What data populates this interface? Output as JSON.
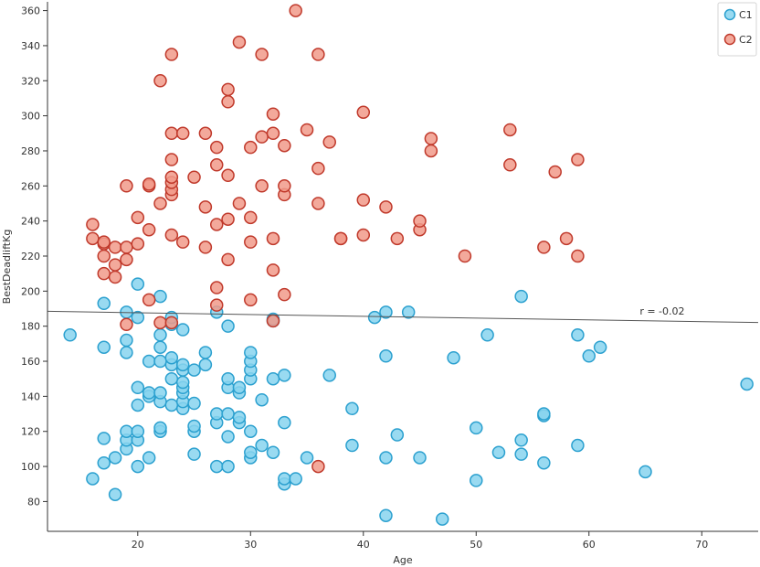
{
  "chart_data": {
    "type": "scatter",
    "xlabel": "Age",
    "ylabel": "BestDeadliftKg",
    "xlim": [
      12,
      75
    ],
    "ylim": [
      63,
      365
    ],
    "x_ticks": [
      20,
      30,
      40,
      50,
      60,
      70
    ],
    "y_ticks": [
      80,
      100,
      120,
      140,
      160,
      180,
      200,
      220,
      240,
      260,
      280,
      300,
      320,
      340,
      360
    ],
    "grid": false,
    "legend_position": "top-right",
    "annotation": "r = -0.02",
    "regression_line": {
      "x": [
        12,
        75
      ],
      "y": [
        188.5,
        182.1
      ]
    },
    "series": [
      {
        "name": "C1",
        "color": "#87d3ee",
        "edge_color": "#2ba0cf",
        "points": [
          [
            14,
            175
          ],
          [
            16,
            93
          ],
          [
            17,
            102
          ],
          [
            17,
            116
          ],
          [
            17,
            193
          ],
          [
            17,
            168
          ],
          [
            18,
            84
          ],
          [
            18,
            105
          ],
          [
            19,
            110
          ],
          [
            19,
            115
          ],
          [
            19,
            120
          ],
          [
            19,
            188
          ],
          [
            19,
            172
          ],
          [
            19,
            165
          ],
          [
            20,
            100
          ],
          [
            20,
            115
          ],
          [
            20,
            120
          ],
          [
            20,
            135
          ],
          [
            20,
            145
          ],
          [
            20,
            185
          ],
          [
            20,
            204
          ],
          [
            21,
            105
          ],
          [
            21,
            140
          ],
          [
            21,
            142
          ],
          [
            21,
            160
          ],
          [
            22,
            120
          ],
          [
            22,
            122
          ],
          [
            22,
            137
          ],
          [
            22,
            142
          ],
          [
            22,
            160
          ],
          [
            22,
            168
          ],
          [
            22,
            175
          ],
          [
            22,
            197
          ],
          [
            23,
            135
          ],
          [
            23,
            150
          ],
          [
            23,
            158
          ],
          [
            23,
            162
          ],
          [
            23,
            181
          ],
          [
            23,
            185
          ],
          [
            24,
            133
          ],
          [
            24,
            137
          ],
          [
            24,
            142
          ],
          [
            24,
            145
          ],
          [
            24,
            148
          ],
          [
            24,
            155
          ],
          [
            24,
            158
          ],
          [
            24,
            178
          ],
          [
            25,
            107
          ],
          [
            25,
            120
          ],
          [
            25,
            123
          ],
          [
            25,
            136
          ],
          [
            25,
            155
          ],
          [
            26,
            158
          ],
          [
            26,
            165
          ],
          [
            27,
            100
          ],
          [
            27,
            125
          ],
          [
            27,
            130
          ],
          [
            27,
            188
          ],
          [
            28,
            100
          ],
          [
            28,
            117
          ],
          [
            28,
            130
          ],
          [
            28,
            145
          ],
          [
            28,
            150
          ],
          [
            28,
            180
          ],
          [
            29,
            125
          ],
          [
            29,
            128
          ],
          [
            29,
            142
          ],
          [
            29,
            145
          ],
          [
            30,
            105
          ],
          [
            30,
            108
          ],
          [
            30,
            120
          ],
          [
            30,
            150
          ],
          [
            30,
            155
          ],
          [
            30,
            160
          ],
          [
            30,
            165
          ],
          [
            31,
            112
          ],
          [
            31,
            138
          ],
          [
            32,
            108
          ],
          [
            32,
            150
          ],
          [
            32,
            183
          ],
          [
            32,
            184
          ],
          [
            33,
            90
          ],
          [
            33,
            93
          ],
          [
            33,
            125
          ],
          [
            33,
            152
          ],
          [
            34,
            93
          ],
          [
            35,
            105
          ],
          [
            37,
            152
          ],
          [
            39,
            112
          ],
          [
            39,
            133
          ],
          [
            41,
            185
          ],
          [
            42,
            72
          ],
          [
            42,
            105
          ],
          [
            42,
            163
          ],
          [
            42,
            188
          ],
          [
            43,
            118
          ],
          [
            44,
            188
          ],
          [
            45,
            105
          ],
          [
            47,
            70
          ],
          [
            48,
            162
          ],
          [
            50,
            92
          ],
          [
            50,
            122
          ],
          [
            51,
            175
          ],
          [
            52,
            108
          ],
          [
            54,
            107
          ],
          [
            54,
            115
          ],
          [
            54,
            197
          ],
          [
            56,
            102
          ],
          [
            56,
            129
          ],
          [
            56,
            130
          ],
          [
            59,
            112
          ],
          [
            59,
            175
          ],
          [
            60,
            163
          ],
          [
            61,
            168
          ],
          [
            65,
            97
          ],
          [
            74,
            147
          ]
        ]
      },
      {
        "name": "C2",
        "color": "#f19a8a",
        "edge_color": "#c0392b",
        "points": [
          [
            16,
            230
          ],
          [
            16,
            238
          ],
          [
            17,
            210
          ],
          [
            17,
            220
          ],
          [
            17,
            227
          ],
          [
            17,
            228
          ],
          [
            18,
            208
          ],
          [
            18,
            215
          ],
          [
            18,
            225
          ],
          [
            19,
            181
          ],
          [
            19,
            218
          ],
          [
            19,
            225
          ],
          [
            19,
            260
          ],
          [
            20,
            227
          ],
          [
            20,
            242
          ],
          [
            21,
            195
          ],
          [
            21,
            235
          ],
          [
            21,
            260
          ],
          [
            21,
            261
          ],
          [
            22,
            182
          ],
          [
            22,
            250
          ],
          [
            22,
            320
          ],
          [
            23,
            182
          ],
          [
            23,
            232
          ],
          [
            23,
            255
          ],
          [
            23,
            258
          ],
          [
            23,
            262
          ],
          [
            23,
            265
          ],
          [
            23,
            275
          ],
          [
            23,
            290
          ],
          [
            23,
            335
          ],
          [
            24,
            228
          ],
          [
            24,
            290
          ],
          [
            25,
            265
          ],
          [
            26,
            225
          ],
          [
            26,
            248
          ],
          [
            26,
            290
          ],
          [
            27,
            192
          ],
          [
            27,
            202
          ],
          [
            27,
            238
          ],
          [
            27,
            272
          ],
          [
            27,
            282
          ],
          [
            28,
            218
          ],
          [
            28,
            241
          ],
          [
            28,
            266
          ],
          [
            28,
            308
          ],
          [
            28,
            315
          ],
          [
            29,
            250
          ],
          [
            29,
            342
          ],
          [
            30,
            195
          ],
          [
            30,
            228
          ],
          [
            30,
            242
          ],
          [
            30,
            282
          ],
          [
            31,
            260
          ],
          [
            31,
            288
          ],
          [
            31,
            335
          ],
          [
            32,
            183
          ],
          [
            32,
            212
          ],
          [
            32,
            230
          ],
          [
            32,
            290
          ],
          [
            32,
            301
          ],
          [
            33,
            198
          ],
          [
            33,
            255
          ],
          [
            33,
            260
          ],
          [
            33,
            283
          ],
          [
            34,
            360
          ],
          [
            35,
            292
          ],
          [
            36,
            100
          ],
          [
            36,
            250
          ],
          [
            36,
            270
          ],
          [
            36,
            335
          ],
          [
            37,
            285
          ],
          [
            38,
            230
          ],
          [
            38,
            230
          ],
          [
            40,
            232
          ],
          [
            40,
            252
          ],
          [
            40,
            302
          ],
          [
            42,
            248
          ],
          [
            43,
            230
          ],
          [
            45,
            235
          ],
          [
            45,
            240
          ],
          [
            46,
            280
          ],
          [
            46,
            287
          ],
          [
            49,
            220
          ],
          [
            53,
            272
          ],
          [
            53,
            292
          ],
          [
            56,
            225
          ],
          [
            57,
            268
          ],
          [
            58,
            230
          ],
          [
            59,
            220
          ],
          [
            59,
            275
          ]
        ]
      }
    ]
  }
}
